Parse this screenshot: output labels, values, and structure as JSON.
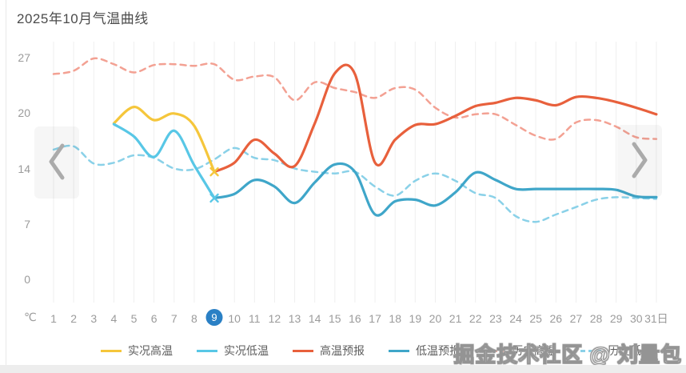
{
  "title": "2025年10月气温曲线",
  "watermark": "掘金技术社区 @ 刘量包",
  "axis": {
    "y_unit": "℃",
    "y_ticks": [
      "27",
      "20",
      "14",
      "7",
      "0"
    ],
    "x_labels": [
      "1",
      "2",
      "3",
      "4",
      "5",
      "6",
      "7",
      "8",
      "9",
      "10",
      "11",
      "12",
      "13",
      "14",
      "15",
      "16",
      "17",
      "18",
      "19",
      "20",
      "21",
      "22",
      "23",
      "24",
      "25",
      "26",
      "27",
      "28",
      "29",
      "30",
      "31日"
    ],
    "today": "9"
  },
  "chart_data": {
    "type": "line",
    "title": "2025年10月气温曲线",
    "xlabel": "日",
    "ylabel": "℃",
    "x": [
      1,
      2,
      3,
      4,
      5,
      6,
      7,
      8,
      9,
      10,
      11,
      12,
      13,
      14,
      15,
      16,
      17,
      18,
      19,
      20,
      21,
      22,
      23,
      24,
      25,
      26,
      27,
      28,
      29,
      30,
      31
    ],
    "y_tick_values": [
      0,
      7,
      14,
      20,
      27
    ],
    "ylim": [
      0,
      27
    ],
    "grid": "vertical-only",
    "legend_position": "bottom",
    "today_day": 9,
    "series": [
      {
        "key": "actual-high",
        "name": "实况高温",
        "color": "#f5c63b",
        "line": "solid",
        "start_day": 4,
        "end_marker": "x",
        "values": [
          19.0,
          21.0,
          19.4,
          20.2,
          18.7,
          13.1
        ]
      },
      {
        "key": "actual-low",
        "name": "实况低温",
        "color": "#58c7e6",
        "line": "solid",
        "start_day": 4,
        "end_marker": "x",
        "values": [
          18.9,
          17.4,
          14.9,
          18.1,
          13.9,
          9.9
        ]
      },
      {
        "key": "forecast-high",
        "name": "高温预报",
        "color": "#e8603c",
        "line": "solid",
        "start_day": 9,
        "values": [
          13.1,
          14.2,
          17.0,
          15.3,
          13.8,
          19.0,
          25.1,
          25.0,
          14.2,
          17.0,
          18.8,
          18.9,
          19.9,
          21.1,
          21.5,
          22.1,
          21.8,
          21.2,
          22.2,
          22.1,
          21.6,
          20.9,
          20.1
        ]
      },
      {
        "key": "forecast-low",
        "name": "低温预报",
        "color": "#3fa6c9",
        "line": "solid",
        "start_day": 9,
        "values": [
          9.9,
          10.4,
          12.1,
          11.3,
          9.3,
          11.8,
          14.0,
          13.1,
          7.9,
          9.5,
          9.7,
          9.0,
          10.6,
          13.0,
          12.1,
          11.0,
          11.0,
          11.0,
          11.0,
          11.0,
          10.9,
          10.1,
          10.0
        ]
      },
      {
        "key": "history-high",
        "name": "历史高温",
        "color": "#f3a193",
        "line": "dashed",
        "start_day": 1,
        "values": [
          25.0,
          25.4,
          26.9,
          26.2,
          25.2,
          26.1,
          26.2,
          26.0,
          26.2,
          24.3,
          24.7,
          24.6,
          21.8,
          24.0,
          23.3,
          22.8,
          22.1,
          23.3,
          23.1,
          20.9,
          19.7,
          20.1,
          20.1,
          18.8,
          17.5,
          17.1,
          19.1,
          19.4,
          18.6,
          17.3,
          17.1
        ]
      },
      {
        "key": "history-low",
        "name": "历史低温",
        "color": "#8ad1e8",
        "line": "dashed",
        "start_day": 1,
        "values": [
          15.8,
          16.2,
          14.1,
          14.2,
          15.1,
          14.8,
          13.5,
          13.4,
          14.6,
          16.0,
          14.8,
          14.5,
          13.5,
          13.1,
          12.9,
          13.1,
          11.3,
          10.2,
          12.0,
          12.9,
          12.0,
          10.5,
          9.9,
          7.7,
          7.0,
          7.9,
          8.8,
          9.7,
          10.0,
          9.9,
          9.8
        ]
      }
    ]
  }
}
